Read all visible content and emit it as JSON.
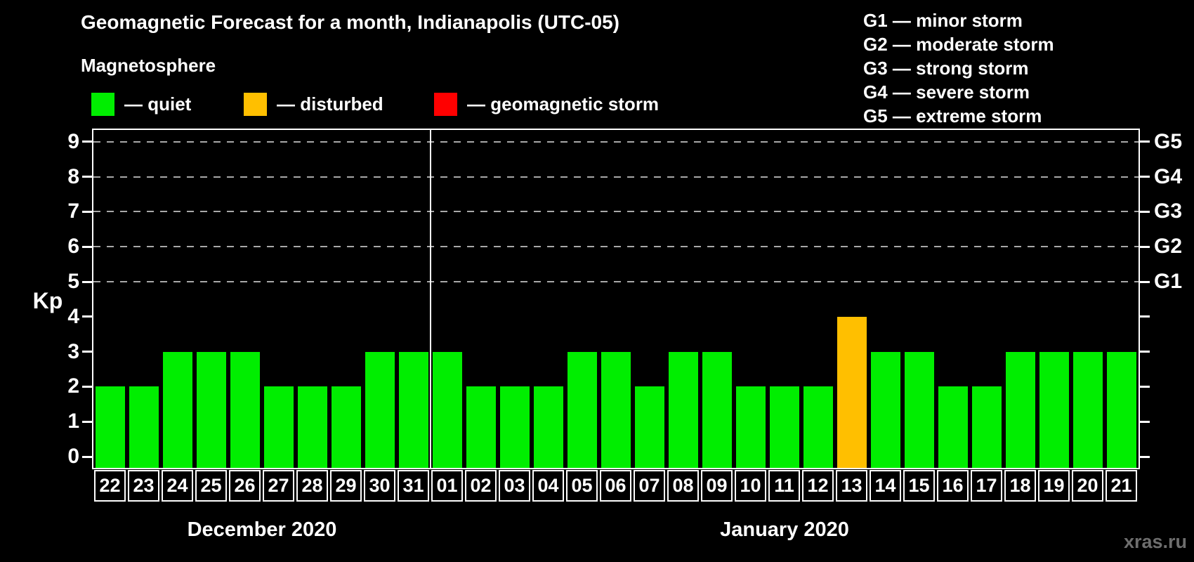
{
  "chart_data": {
    "type": "bar",
    "title": "Geomagnetic Forecast for a month, Indianapolis (UTC-05)",
    "subtitle": "Magnetosphere",
    "ylabel": "Kp",
    "y_ticks": [
      0,
      1,
      2,
      3,
      4,
      5,
      6,
      7,
      8,
      9
    ],
    "ylim": [
      0,
      9.7
    ],
    "grid_on": true,
    "grid_levels": [
      5,
      6,
      7,
      8,
      9
    ],
    "right_axis": [
      {
        "kp": 5,
        "label": "G1"
      },
      {
        "kp": 6,
        "label": "G2"
      },
      {
        "kp": 7,
        "label": "G3"
      },
      {
        "kp": 8,
        "label": "G4"
      },
      {
        "kp": 9,
        "label": "G5"
      }
    ],
    "legend": [
      {
        "status": "quiet",
        "label": "— quiet",
        "color": "#00ee00"
      },
      {
        "status": "disturbed",
        "label": "— disturbed",
        "color": "#ffbf00"
      },
      {
        "status": "storm",
        "label": "— geomagnetic storm",
        "color": "#ff0000"
      }
    ],
    "g_scale_legend": [
      "G1 — minor storm",
      "G2 — moderate storm",
      "G3 — strong storm",
      "G4 — severe storm",
      "G5 — extreme storm"
    ],
    "months": [
      {
        "label": "December 2020",
        "days": 10
      },
      {
        "label": "January 2020",
        "days": 21
      }
    ],
    "series": [
      {
        "day": "22",
        "kp": 2,
        "status": "quiet"
      },
      {
        "day": "23",
        "kp": 2,
        "status": "quiet"
      },
      {
        "day": "24",
        "kp": 3,
        "status": "quiet"
      },
      {
        "day": "25",
        "kp": 3,
        "status": "quiet"
      },
      {
        "day": "26",
        "kp": 3,
        "status": "quiet"
      },
      {
        "day": "27",
        "kp": 2,
        "status": "quiet"
      },
      {
        "day": "28",
        "kp": 2,
        "status": "quiet"
      },
      {
        "day": "29",
        "kp": 2,
        "status": "quiet"
      },
      {
        "day": "30",
        "kp": 3,
        "status": "quiet"
      },
      {
        "day": "31",
        "kp": 3,
        "status": "quiet"
      },
      {
        "day": "01",
        "kp": 3,
        "status": "quiet"
      },
      {
        "day": "02",
        "kp": 2,
        "status": "quiet"
      },
      {
        "day": "03",
        "kp": 2,
        "status": "quiet"
      },
      {
        "day": "04",
        "kp": 2,
        "status": "quiet"
      },
      {
        "day": "05",
        "kp": 3,
        "status": "quiet"
      },
      {
        "day": "06",
        "kp": 3,
        "status": "quiet"
      },
      {
        "day": "07",
        "kp": 2,
        "status": "quiet"
      },
      {
        "day": "08",
        "kp": 3,
        "status": "quiet"
      },
      {
        "day": "09",
        "kp": 3,
        "status": "quiet"
      },
      {
        "day": "10",
        "kp": 2,
        "status": "quiet"
      },
      {
        "day": "11",
        "kp": 2,
        "status": "quiet"
      },
      {
        "day": "12",
        "kp": 2,
        "status": "quiet"
      },
      {
        "day": "13",
        "kp": 4,
        "status": "disturbed"
      },
      {
        "day": "14",
        "kp": 3,
        "status": "quiet"
      },
      {
        "day": "15",
        "kp": 3,
        "status": "quiet"
      },
      {
        "day": "16",
        "kp": 2,
        "status": "quiet"
      },
      {
        "day": "17",
        "kp": 2,
        "status": "quiet"
      },
      {
        "day": "18",
        "kp": 3,
        "status": "quiet"
      },
      {
        "day": "19",
        "kp": 3,
        "status": "quiet"
      },
      {
        "day": "20",
        "kp": 3,
        "status": "quiet"
      },
      {
        "day": "21",
        "kp": 3,
        "status": "quiet"
      }
    ]
  },
  "watermark": "xras.ru",
  "colors": {
    "background": "#000000",
    "bar_quiet": "#00ee00",
    "bar_disturbed": "#ffbf00",
    "bar_storm": "#ff0000",
    "axis": "#ffffff",
    "grid": "#a8a8a8",
    "watermark": "#6e6e6e"
  }
}
